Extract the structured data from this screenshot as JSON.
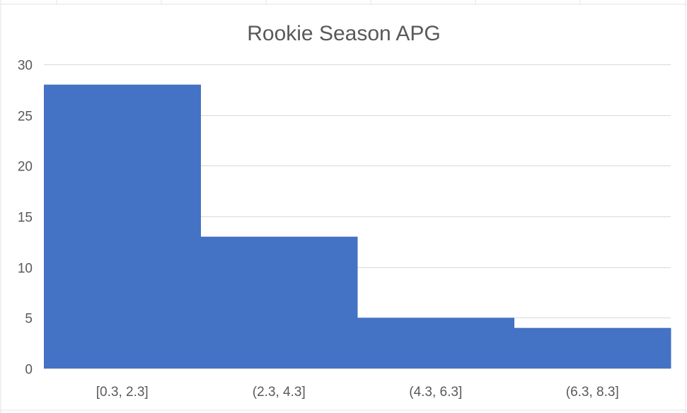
{
  "chart_data": {
    "type": "bar",
    "title": "Rookie Season APG",
    "xlabel": "",
    "ylabel": "",
    "categories": [
      "[0.3, 2.3]",
      "(2.3, 4.3]",
      "(4.3, 6.3]",
      "(6.3, 8.3]"
    ],
    "values": [
      28,
      13,
      5,
      4
    ],
    "ylim": [
      0,
      30
    ],
    "yticks": [
      "0",
      "5",
      "10",
      "15",
      "20",
      "25",
      "30"
    ],
    "grid": true,
    "legend": "none",
    "bar_color": "#4472C4"
  }
}
